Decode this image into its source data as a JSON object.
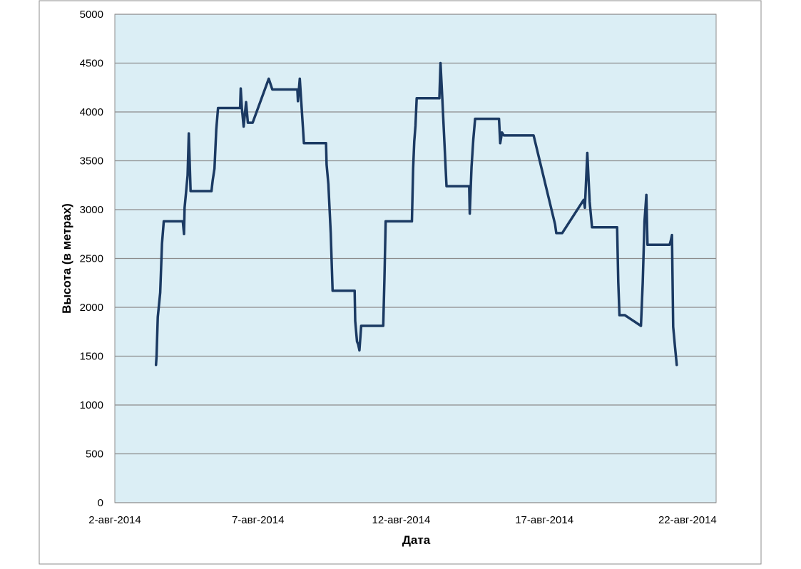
{
  "colors": {
    "plot_background": "#dbeef5",
    "gridline": "#8c8c8c",
    "series_line": "#1b3a63",
    "frame": "#8c8c8c"
  },
  "chart_data": {
    "type": "line",
    "xlabel": "Дата",
    "ylabel": "Высота (в метрах)",
    "ylim": [
      0,
      5000
    ],
    "xlim": [
      "2014-08-02",
      "2014-08-23"
    ],
    "grid": true,
    "y_ticks": [
      "0",
      "500",
      "1000",
      "1500",
      "2000",
      "2500",
      "3000",
      "3500",
      "4000",
      "4500",
      "5000"
    ],
    "x_ticks": [
      {
        "date": "2014-08-02",
        "label": "2-авг-2014"
      },
      {
        "date": "2014-08-07",
        "label": "7-авг-2014"
      },
      {
        "date": "2014-08-12",
        "label": "12-авг-2014"
      },
      {
        "date": "2014-08-17",
        "label": "17-авг-2014"
      },
      {
        "date": "2014-08-22",
        "label": "22-авг-2014"
      }
    ],
    "series": [
      {
        "x": [
          "2014-08-03 10:30",
          "2014-08-03 11:00",
          "2014-08-03 12:00",
          "2014-08-03 14:00",
          "2014-08-03 15:30",
          "2014-08-03 17:00",
          "2014-08-03 18:00",
          "2014-08-04 09:00",
          "2014-08-04 10:00",
          "2014-08-04 10:30",
          "2014-08-04 11:30",
          "2014-08-04 13:00",
          "2014-08-04 14:00",
          "2014-08-04 15:30",
          "2014-08-04 16:30",
          "2014-08-04 18:30",
          "2014-08-05 09:00",
          "2014-08-05 10:00",
          "2014-08-05 11:30",
          "2014-08-05 13:00",
          "2014-08-05 14:30",
          "2014-08-05 16:00",
          "2014-08-06 09:00",
          "2014-08-06 09:30",
          "2014-08-06 10:30",
          "2014-08-06 12:00",
          "2014-08-06 14:00",
          "2014-08-06 15:30",
          "2014-08-06 17:30",
          "2014-08-06 19:30",
          "2014-08-07 09:00",
          "2014-08-07 12:00",
          "2014-08-07 14:00",
          "2014-08-08 09:00",
          "2014-08-08 09:30",
          "2014-08-08 11:00",
          "2014-08-08 14:30",
          "2014-08-08 15:30",
          "2014-08-09 09:00",
          "2014-08-09 09:30",
          "2014-08-09 11:00",
          "2014-08-09 12:00",
          "2014-08-09 13:00",
          "2014-08-09 14:30",
          "2014-08-09 15:30",
          "2014-08-09 16:30",
          "2014-08-10 09:00",
          "2014-08-10 09:30",
          "2014-08-10 11:00",
          "2014-08-10 12:00",
          "2014-08-10 13:00",
          "2014-08-10 14:30",
          "2014-08-10 17:00",
          "2014-08-10 18:00",
          "2014-08-11 09:00",
          "2014-08-11 10:00",
          "2014-08-11 11:00",
          "2014-08-11 12:00",
          "2014-08-11 13:00",
          "2014-08-11 14:30",
          "2014-08-11 15:30",
          "2014-08-12 09:00",
          "2014-08-12 10:00",
          "2014-08-12 11:00",
          "2014-08-12 12:00",
          "2014-08-12 13:00",
          "2014-08-12 14:30",
          "2014-08-12 16:00",
          "2014-08-13 08:00",
          "2014-08-13 09:00",
          "2014-08-13 10:30",
          "2014-08-13 12:00",
          "2014-08-13 14:00",
          "2014-08-13 15:00",
          "2014-08-14 09:00",
          "2014-08-14 09:30",
          "2014-08-14 11:00",
          "2014-08-14 12:30",
          "2014-08-14 14:00",
          "2014-08-14 15:00",
          "2014-08-15 10:00",
          "2014-08-15 11:00",
          "2014-08-15 12:30",
          "2014-08-15 14:00",
          "2014-08-15 16:00",
          "2014-08-15 16:30",
          "2014-08-15 17:00",
          "2014-08-15 18:00",
          "2014-08-16 09:00",
          "2014-08-16 10:00",
          "2014-08-16 12:00",
          "2014-08-16 13:00",
          "2014-08-16 14:00",
          "2014-08-16 15:00",
          "2014-08-17 09:00",
          "2014-08-17 10:00",
          "2014-08-17 14:00",
          "2014-08-17 15:00",
          "2014-08-18 09:00",
          "2014-08-18 10:00",
          "2014-08-18 12:00",
          "2014-08-18 14:00",
          "2014-08-18 16:00",
          "2014-08-19 09:00",
          "2014-08-19 10:00",
          "2014-08-19 11:00",
          "2014-08-19 13:00",
          "2014-08-19 14:00",
          "2014-08-19 15:00",
          "2014-08-19 16:30",
          "2014-08-19 19:30",
          "2014-08-20 09:00",
          "2014-08-20 10:30",
          "2014-08-20 12:00",
          "2014-08-20 13:30",
          "2014-08-20 14:30",
          "2014-08-20 16:00",
          "2014-08-21 09:00",
          "2014-08-21 10:00",
          "2014-08-21 11:00",
          "2014-08-21 12:00",
          "2014-08-21 13:30",
          "2014-08-21 15:00"
        ],
        "y": [
          1410,
          1500,
          1900,
          2150,
          2650,
          2880,
          2880,
          2880,
          2750,
          3020,
          3150,
          3350,
          3780,
          3190,
          3190,
          3190,
          3190,
          3300,
          3420,
          3820,
          4040,
          4040,
          4040,
          4240,
          4040,
          3850,
          4100,
          3890,
          3890,
          3890,
          4340,
          4230,
          4230,
          4230,
          4110,
          4340,
          3680,
          3680,
          3680,
          3460,
          3260,
          3000,
          2760,
          2170,
          2170,
          2170,
          2170,
          1860,
          1650,
          1620,
          1560,
          1810,
          1810,
          1810,
          1810,
          2300,
          2880,
          2880,
          2880,
          2880,
          2880,
          2880,
          3420,
          3700,
          3860,
          4140,
          4140,
          4140,
          4140,
          4500,
          4140,
          3760,
          3240,
          3240,
          3240,
          2960,
          3440,
          3720,
          3930,
          3930,
          3930,
          3680,
          3790,
          3760,
          3760,
          3760,
          3760,
          3760,
          3760,
          3760,
          3760,
          3760,
          3760,
          3760,
          2850,
          2760,
          2760,
          2760,
          3100,
          3020,
          3580,
          3080,
          2820,
          2820,
          2820,
          2820,
          2820,
          2260,
          1920,
          1920,
          1920,
          1810,
          2250,
          2880,
          3150,
          2640,
          2640,
          2640,
          2680,
          2740,
          1800,
          1600,
          1410
        ]
      }
    ]
  }
}
